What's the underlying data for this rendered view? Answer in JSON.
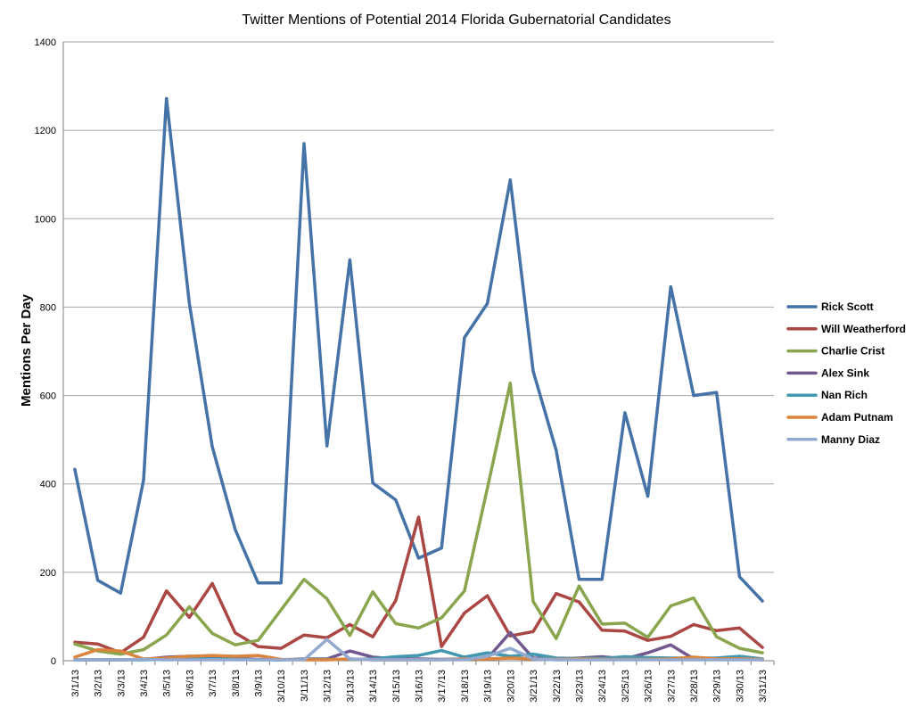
{
  "chart_data": {
    "type": "line",
    "title": "Twitter Mentions of Potential 2014 Florida Gubernatorial Candidates",
    "xlabel": "",
    "ylabel": "Mentions Per Day",
    "ylim": [
      0,
      1400
    ],
    "yticks": [
      0,
      200,
      400,
      600,
      800,
      1000,
      1200,
      1400
    ],
    "grid": true,
    "legend_position": "right",
    "categories": [
      "3/1/13",
      "3/2/13",
      "3/3/13",
      "3/4/13",
      "3/5/13",
      "3/6/13",
      "3/7/13",
      "3/8/13",
      "3/9/13",
      "3/10/13",
      "3/11/13",
      "3/12/13",
      "3/13/13",
      "3/14/13",
      "3/15/13",
      "3/16/13",
      "3/17/13",
      "3/18/13",
      "3/19/13",
      "3/20/13",
      "3/21/13",
      "3/22/13",
      "3/23/13",
      "3/24/13",
      "3/25/13",
      "3/26/13",
      "3/27/13",
      "3/28/13",
      "3/29/13",
      "3/30/13",
      "3/31/13"
    ],
    "series": [
      {
        "name": "Rick Scott",
        "color": "#4572A7",
        "values": [
          433,
          182,
          153,
          408,
          1272,
          808,
          484,
          297,
          176,
          176,
          1170,
          486,
          907,
          402,
          364,
          232,
          255,
          731,
          808,
          1088,
          655,
          476,
          184,
          184,
          561,
          372,
          846,
          600,
          607,
          190,
          135
        ]
      },
      {
        "name": "Will Weatherford",
        "color": "#AA4643",
        "values": [
          42,
          38,
          18,
          53,
          158,
          98,
          175,
          63,
          32,
          28,
          58,
          52,
          82,
          54,
          136,
          325,
          32,
          108,
          147,
          56,
          66,
          152,
          133,
          69,
          67,
          46,
          55,
          82,
          68,
          74,
          30
        ]
      },
      {
        "name": "Charlie Crist",
        "color": "#89A54E",
        "values": [
          38,
          22,
          15,
          25,
          58,
          122,
          62,
          36,
          46,
          115,
          184,
          140,
          57,
          156,
          84,
          74,
          97,
          158,
          390,
          628,
          134,
          50,
          169,
          83,
          85,
          53,
          124,
          142,
          54,
          28,
          18
        ]
      },
      {
        "name": "Alex Sink",
        "color": "#71588F",
        "values": [
          2,
          2,
          2,
          3,
          8,
          10,
          7,
          5,
          3,
          2,
          4,
          4,
          22,
          8,
          4,
          4,
          3,
          4,
          5,
          64,
          6,
          4,
          6,
          9,
          4,
          18,
          36,
          4,
          3,
          4,
          2
        ]
      },
      {
        "name": "Nan Rich",
        "color": "#4198AF",
        "values": [
          2,
          2,
          2,
          2,
          3,
          4,
          4,
          3,
          2,
          2,
          3,
          3,
          3,
          4,
          9,
          12,
          23,
          8,
          18,
          10,
          15,
          6,
          5,
          5,
          9,
          7,
          6,
          6,
          6,
          10,
          4
        ]
      },
      {
        "name": "Adam Putnam",
        "color": "#DB843D",
        "values": [
          8,
          25,
          22,
          4,
          6,
          10,
          12,
          10,
          12,
          3,
          2,
          2,
          4,
          2,
          2,
          2,
          2,
          4,
          4,
          6,
          4,
          3,
          4,
          3,
          3,
          3,
          4,
          8,
          4,
          4,
          3
        ]
      },
      {
        "name": "Manny Diaz",
        "color": "#93A9CF",
        "values": [
          2,
          2,
          2,
          3,
          2,
          2,
          2,
          2,
          2,
          2,
          2,
          48,
          4,
          2,
          2,
          2,
          2,
          2,
          10,
          28,
          4,
          2,
          2,
          2,
          2,
          2,
          2,
          2,
          2,
          2,
          2
        ]
      }
    ]
  }
}
